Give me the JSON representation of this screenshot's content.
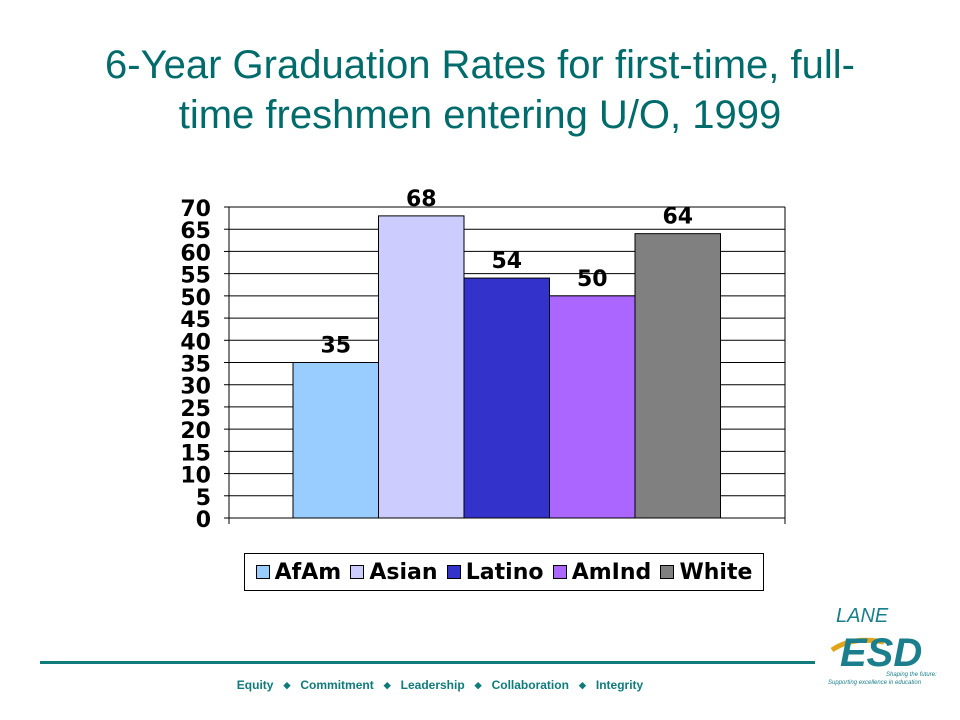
{
  "title": "6-Year Graduation Rates for first-time, full-time freshmen entering U/O, 1999",
  "title_lines": [
    "6-Year Graduation Rates for first-time, full-",
    "time freshmen entering U/O, 1999"
  ],
  "chart_data": {
    "type": "bar",
    "title": "",
    "xlabel": "",
    "ylabel": "",
    "ylim": [
      0,
      70
    ],
    "yticks": [
      0,
      5,
      10,
      15,
      20,
      25,
      30,
      35,
      40,
      45,
      50,
      55,
      60,
      65,
      70
    ],
    "grid": true,
    "legend_position": "bottom",
    "series": [
      {
        "name": "AfAm",
        "value": 35,
        "color": "#99ccff"
      },
      {
        "name": "Asian",
        "value": 68,
        "color": "#ccccff"
      },
      {
        "name": "Latino",
        "value": 54,
        "color": "#3333cc"
      },
      {
        "name": "AmInd",
        "value": 50,
        "color": "#aa66ff"
      },
      {
        "name": "White",
        "value": 64,
        "color": "#808080"
      }
    ]
  },
  "footer": {
    "values": [
      "Equity",
      "Commitment",
      "Leadership",
      "Collaboration",
      "Integrity"
    ],
    "separator": "◆"
  },
  "logo": {
    "top_text": "LANE",
    "main_text": "ESD",
    "tagline_1": "Shaping the future:",
    "tagline_2": "Supporting excellence in education"
  },
  "colors": {
    "title": "#006b6b",
    "footer": "#0f7b7b"
  }
}
